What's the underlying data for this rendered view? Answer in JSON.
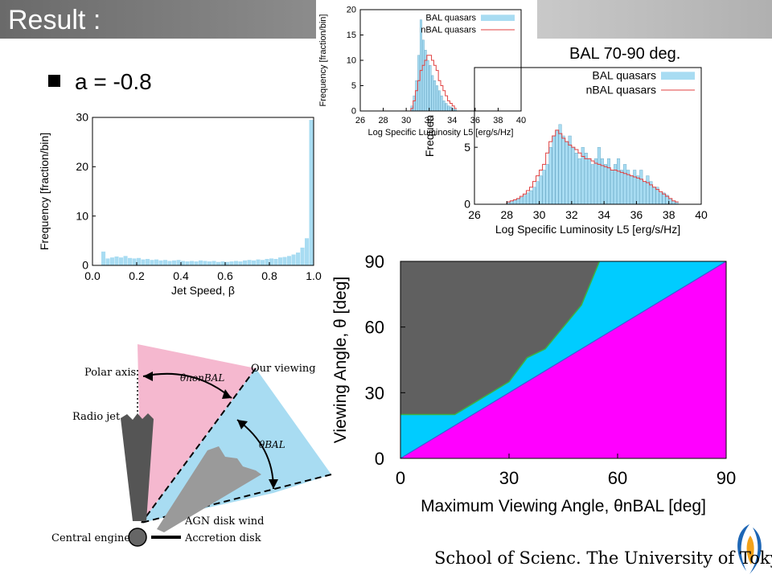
{
  "slide": {
    "title": "Result :",
    "bullet": "a = -0.8",
    "bal_label": "BAL 70-90 deg.",
    "footer": "School of Scienc. The University of Tokyo"
  },
  "chart_data": [
    {
      "id": "jet-speed-histogram",
      "type": "bar",
      "xlabel": "Jet Speed, β",
      "ylabel": "Frequency [fraction/bin]",
      "xlim": [
        0.0,
        1.0
      ],
      "ylim": [
        0,
        30
      ],
      "xticks": [
        "0.0",
        "0.2",
        "0.4",
        "0.6",
        "0.8",
        "1.0"
      ],
      "yticks": [
        "0",
        "10",
        "20",
        "30"
      ],
      "bin_width": 0.02,
      "x": [
        0.05,
        0.07,
        0.09,
        0.11,
        0.13,
        0.15,
        0.17,
        0.19,
        0.21,
        0.23,
        0.25,
        0.27,
        0.29,
        0.31,
        0.33,
        0.35,
        0.37,
        0.39,
        0.41,
        0.43,
        0.45,
        0.47,
        0.49,
        0.51,
        0.53,
        0.55,
        0.57,
        0.59,
        0.61,
        0.63,
        0.65,
        0.67,
        0.69,
        0.71,
        0.73,
        0.75,
        0.77,
        0.79,
        0.81,
        0.83,
        0.85,
        0.87,
        0.89,
        0.91,
        0.93,
        0.95,
        0.97,
        0.99
      ],
      "values": [
        2.8,
        1.4,
        1.6,
        1.8,
        1.6,
        1.9,
        1.5,
        1.4,
        1.5,
        1.2,
        1.3,
        1.1,
        1.2,
        1.0,
        1.1,
        0.9,
        1.0,
        1.1,
        0.9,
        0.8,
        0.9,
        0.8,
        1.0,
        0.9,
        0.8,
        0.9,
        0.7,
        0.8,
        0.7,
        0.8,
        0.9,
        0.8,
        1.0,
        1.1,
        1.0,
        1.2,
        1.1,
        1.3,
        1.4,
        1.3,
        1.6,
        1.7,
        1.9,
        2.2,
        2.6,
        3.6,
        5.5,
        29.5
      ],
      "color": "#a8dcf2"
    },
    {
      "id": "luminosity-histogram-inset",
      "type": "bar",
      "xlabel": "Log Specific Luminosity L5 [erg/s/Hz]",
      "ylabel": "Frequency [fraction/bin]",
      "xlim": [
        26,
        40
      ],
      "ylim": [
        0,
        20
      ],
      "xticks": [
        "26",
        "28",
        "30",
        "32",
        "34",
        "36",
        "38",
        "40"
      ],
      "yticks": [
        "0",
        "5",
        "10",
        "15",
        "20"
      ],
      "legend": {
        "position": "top-right",
        "entries": [
          "BAL quasars",
          "nBAL quasars"
        ]
      },
      "bin_width": 0.2,
      "x": [
        30.5,
        30.7,
        30.9,
        31.1,
        31.3,
        31.5,
        31.7,
        31.9,
        32.1,
        32.3,
        32.5,
        32.7,
        32.9,
        33.1,
        33.3,
        33.5,
        33.7,
        33.9,
        34.1,
        34.3
      ],
      "series": [
        {
          "name": "BAL quasars",
          "values": [
            1,
            3,
            6,
            11,
            18,
            14,
            12,
            10,
            9,
            7,
            6,
            5,
            4,
            3,
            2,
            1.5,
            1,
            0.8,
            0.5,
            0.3
          ],
          "color": "#a8dcf2"
        },
        {
          "name": "nBAL quasars",
          "values": [
            0.5,
            2,
            4,
            6,
            8,
            9,
            10,
            11,
            11,
            10,
            9,
            8,
            6,
            5,
            4,
            3,
            2,
            1.5,
            1,
            0.5
          ],
          "color": "#e04040"
        }
      ]
    },
    {
      "id": "luminosity-histogram-bal",
      "type": "bar",
      "xlabel": "Log Specific Luminosity L5 [erg/s/Hz]",
      "ylabel": "Frequen",
      "xlim": [
        26,
        40
      ],
      "ylim": [
        0,
        12
      ],
      "xticks": [
        "26",
        "28",
        "30",
        "32",
        "34",
        "36",
        "38",
        "40"
      ],
      "yticks": [
        "0",
        "5"
      ],
      "legend": {
        "position": "top-right",
        "entries": [
          "BAL quasars",
          "nBAL quasars"
        ]
      },
      "bin_width": 0.2,
      "x": [
        28.1,
        28.3,
        28.5,
        28.7,
        28.9,
        29.1,
        29.3,
        29.5,
        29.7,
        29.9,
        30.1,
        30.3,
        30.5,
        30.7,
        30.9,
        31.1,
        31.3,
        31.5,
        31.7,
        31.9,
        32.1,
        32.3,
        32.5,
        32.7,
        32.9,
        33.1,
        33.3,
        33.5,
        33.7,
        33.9,
        34.1,
        34.3,
        34.5,
        34.7,
        34.9,
        35.1,
        35.3,
        35.5,
        35.7,
        35.9,
        36.1,
        36.3,
        36.5,
        36.7,
        36.9,
        37.1,
        37.3,
        37.5,
        37.7,
        37.9,
        38.1,
        38.3,
        38.5
      ],
      "series": [
        {
          "name": "BAL quasars",
          "values": [
            0.2,
            0.3,
            0.4,
            0.5,
            0.6,
            0.8,
            1.0,
            1.2,
            1.5,
            2,
            2.5,
            3,
            3.5,
            5,
            6,
            6.5,
            7,
            6,
            5.5,
            6,
            5,
            4.5,
            4,
            5,
            4.5,
            4,
            3.5,
            4,
            5,
            4,
            3.5,
            4,
            3,
            3.5,
            4,
            3,
            3.5,
            3,
            2.5,
            3,
            2.5,
            3,
            2,
            2.5,
            2,
            1.5,
            1.5,
            1,
            1,
            0.8,
            0.5,
            0.3,
            0.2
          ],
          "color": "#a8dcf2"
        },
        {
          "name": "nBAL quasars",
          "values": [
            0.2,
            0.3,
            0.4,
            0.5,
            0.7,
            0.9,
            1.2,
            1.5,
            2,
            2.5,
            3,
            3.5,
            4.5,
            5.5,
            6,
            6.5,
            6.2,
            5.8,
            5.5,
            5.2,
            5,
            4.8,
            4.5,
            4.2,
            4,
            4,
            3.8,
            3.6,
            3.5,
            3.4,
            3.3,
            3.2,
            3,
            3,
            2.9,
            2.8,
            2.7,
            2.6,
            2.5,
            2.4,
            2.3,
            2.2,
            2,
            1.9,
            1.7,
            1.5,
            1.3,
            1.1,
            0.9,
            0.7,
            0.5,
            0.3,
            0.2
          ],
          "color": "#e04040"
        }
      ]
    },
    {
      "id": "viewing-angle-region-plot",
      "type": "area",
      "xlabel": "Maximum Viewing Angle, θnBAL [deg]",
      "ylabel": "Viewing Angle, θ [deg]",
      "xlim": [
        0,
        90
      ],
      "ylim": [
        0,
        90
      ],
      "xticks": [
        "0",
        "30",
        "60",
        "90"
      ],
      "yticks": [
        "0",
        "30",
        "60",
        "90"
      ],
      "series": [
        {
          "name": "",
          "role": "lower",
          "x": [
            0,
            90
          ],
          "y": [
            0,
            90
          ],
          "color": "#ff00ff"
        },
        {
          "name": "",
          "role": "upper-boundary",
          "x": [
            0,
            15,
            20,
            25,
            30,
            35,
            40,
            45,
            50,
            55
          ],
          "y": [
            20,
            20,
            25,
            30,
            35,
            46,
            50,
            60,
            70,
            90
          ],
          "color": "#00ccff"
        },
        {
          "name": "",
          "role": "background",
          "color": "#606060"
        }
      ]
    }
  ],
  "diagram": {
    "labels": {
      "polar_axis": "Polar axis",
      "theta_nonbal": "θnonBAL",
      "our_viewing": "Our viewing",
      "theta_bal": "θBAL",
      "radio_jet": "Radio jet",
      "agn_disk_wind": "AGN disk wind",
      "central_engine": "Central engine",
      "accretion_disk": "Accretion disk"
    },
    "colors": {
      "nonbal_region": "#f5b8cf",
      "bal_region": "#a8dcf2",
      "wind": "#9a9a9a",
      "jet": "#555555"
    }
  }
}
